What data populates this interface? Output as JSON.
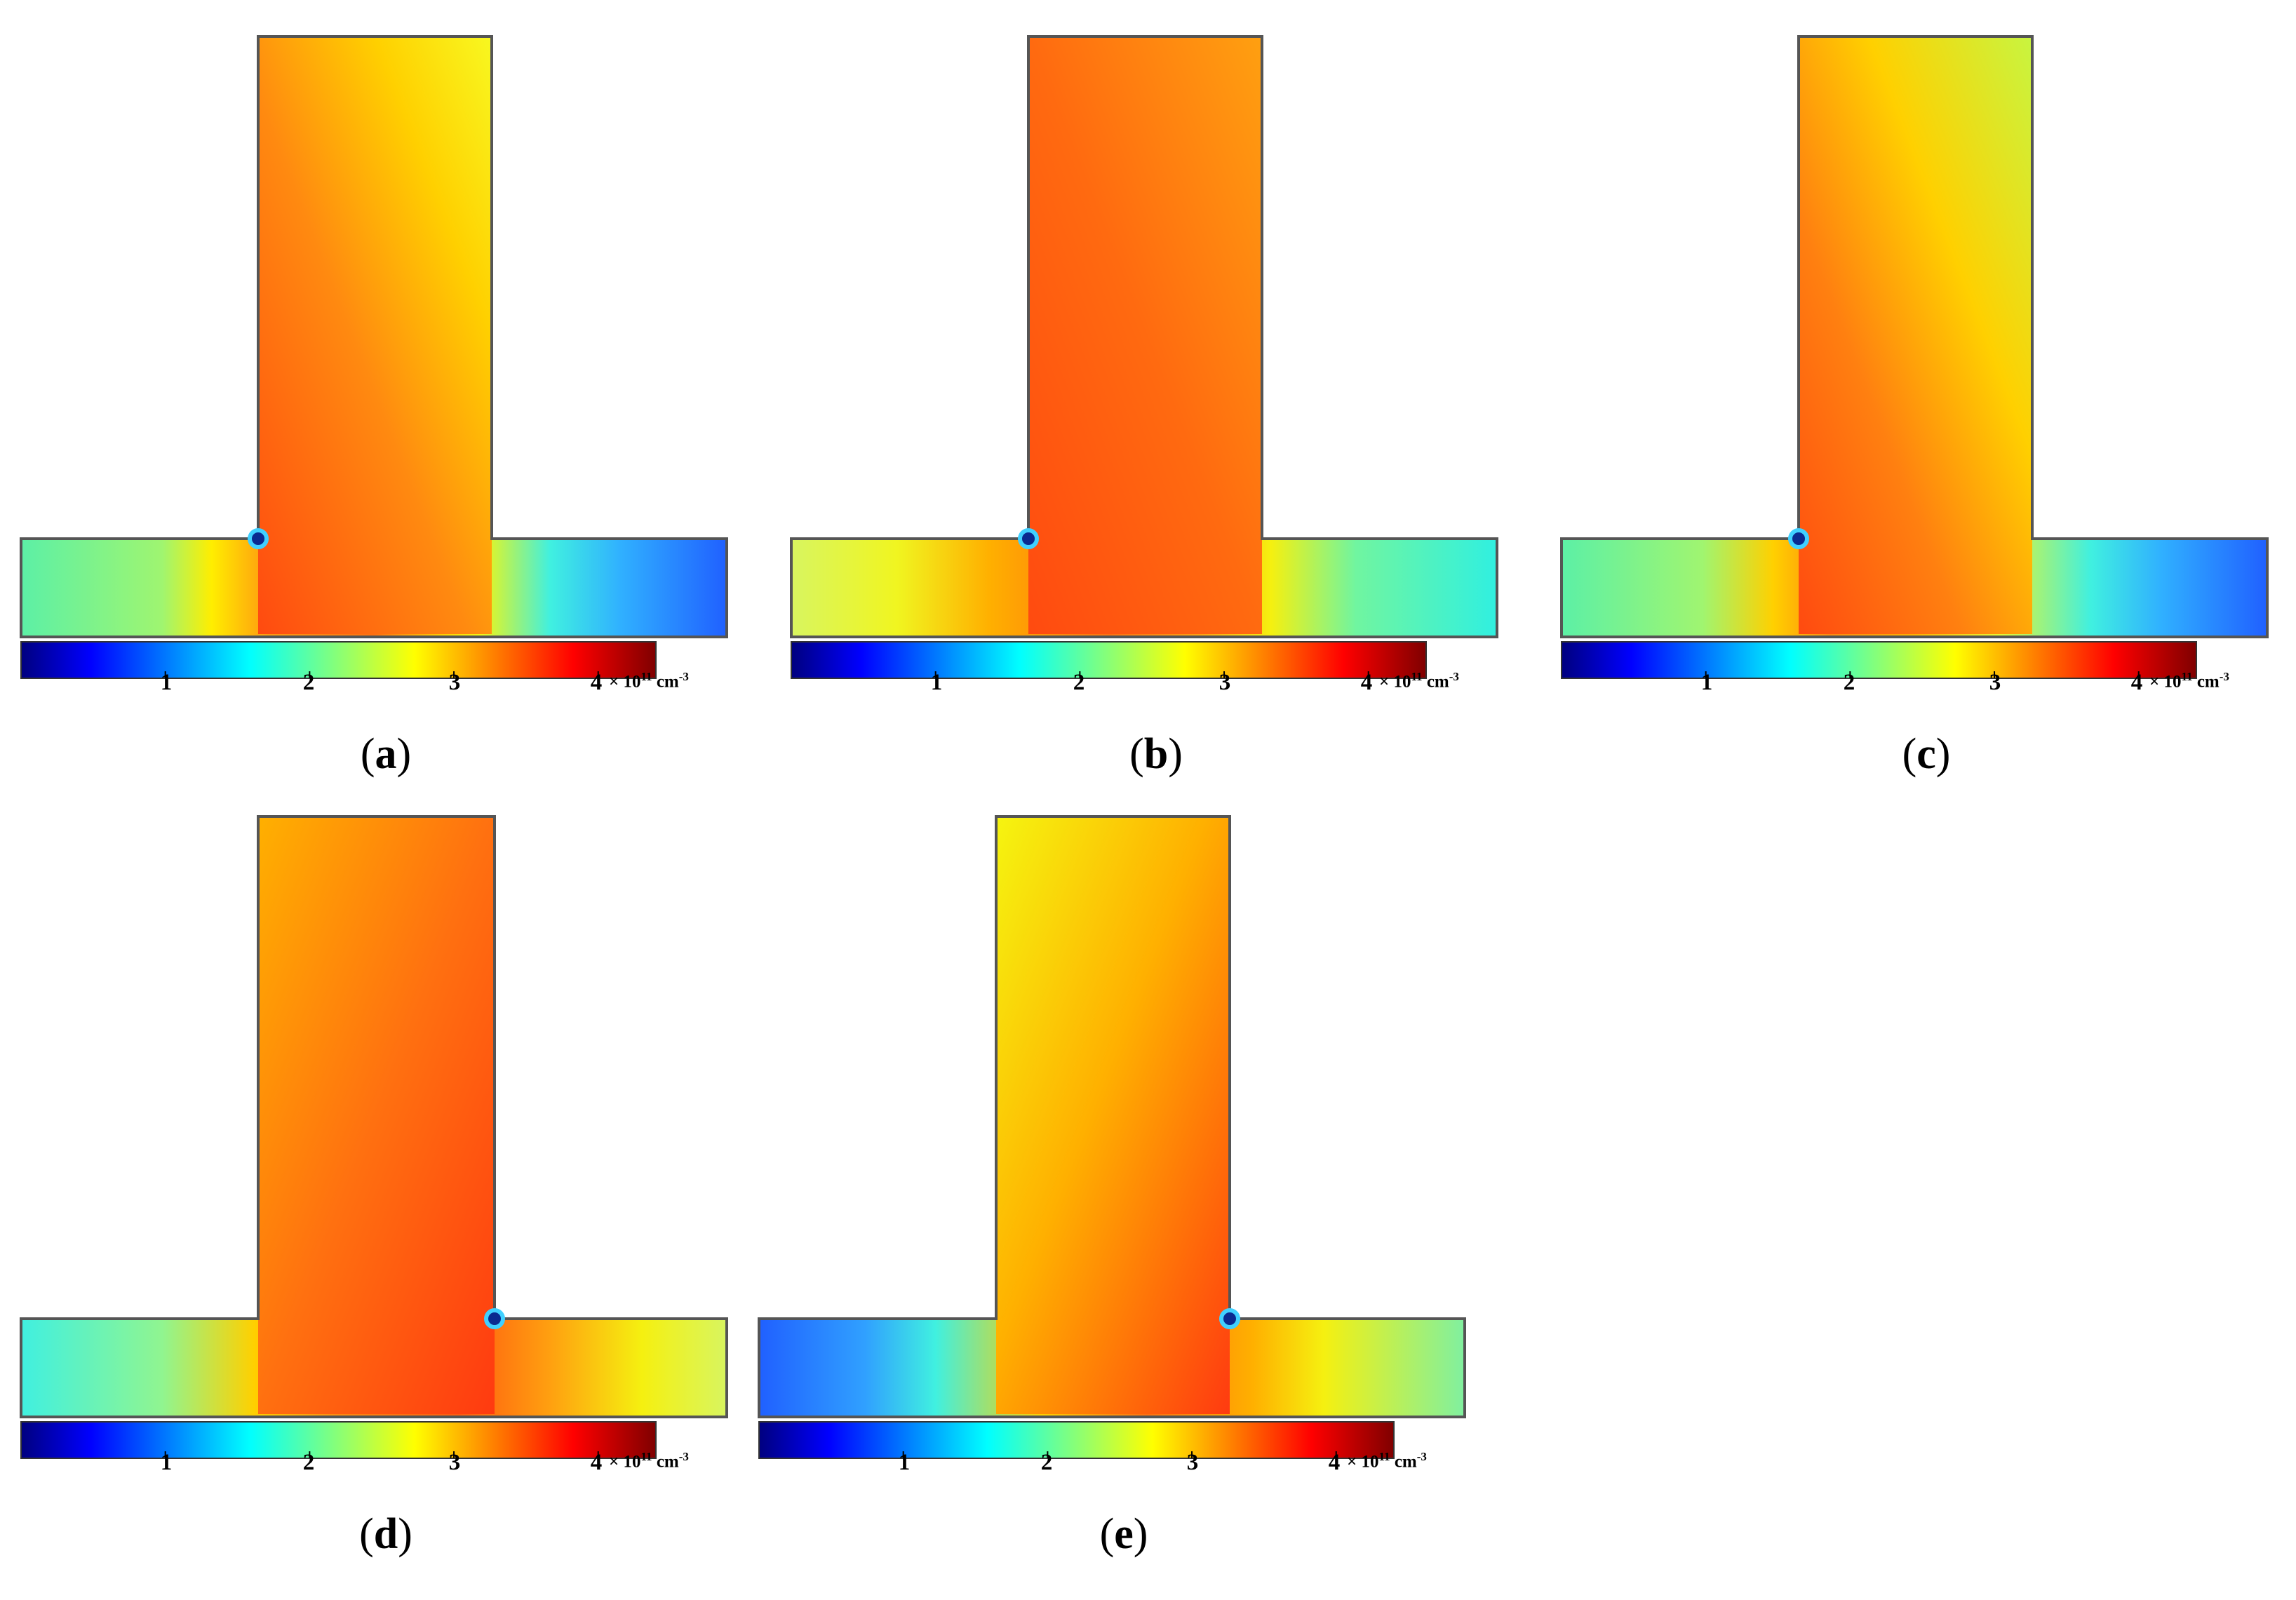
{
  "colorbar": {
    "ticks": [
      "1",
      "2",
      "3",
      "4"
    ],
    "unit_prefix": "× 10",
    "unit_exponent": "11",
    "unit_base": " cm",
    "unit_base_exponent": "-3",
    "colormap": "jet",
    "range": [
      0,
      4.4
    ]
  },
  "panels": [
    {
      "id": "a",
      "label": "a",
      "defect_side": "left"
    },
    {
      "id": "b",
      "label": "b",
      "defect_side": "left"
    },
    {
      "id": "c",
      "label": "c",
      "defect_side": "left"
    },
    {
      "id": "d",
      "label": "d",
      "defect_side": "right"
    },
    {
      "id": "e",
      "label": "e",
      "defect_side": "right"
    }
  ],
  "colors": {
    "outline": "#555555"
  }
}
